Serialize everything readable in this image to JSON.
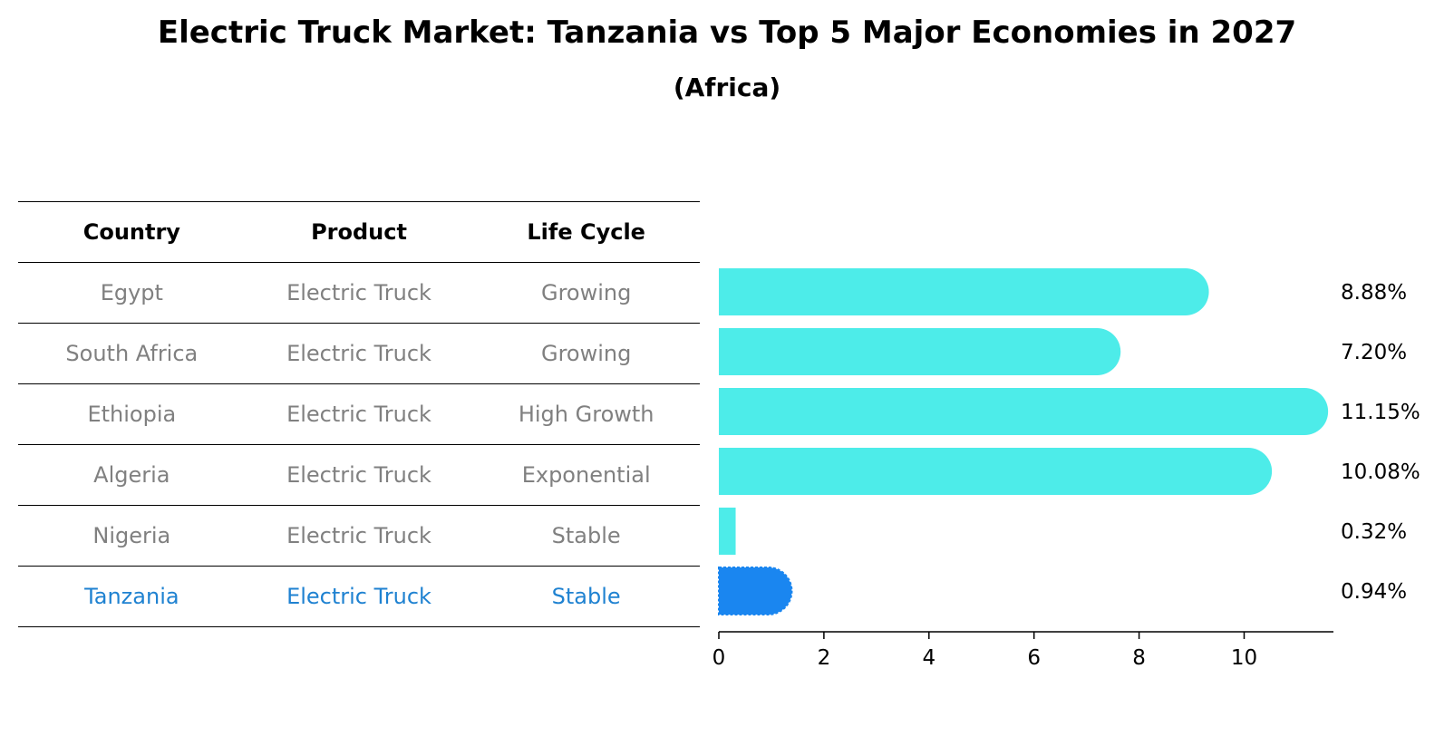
{
  "title": "Electric Truck Market: Tanzania vs Top 5 Major Economies in 2027",
  "subtitle": "(Africa)",
  "table": {
    "headers": [
      "Country",
      "Product",
      "Life Cycle"
    ],
    "rows": [
      {
        "country": "Egypt",
        "product": "Electric Truck",
        "life_cycle": "Growing"
      },
      {
        "country": "South Africa",
        "product": "Electric Truck",
        "life_cycle": "Growing"
      },
      {
        "country": "Ethiopia",
        "product": "Electric Truck",
        "life_cycle": "High Growth"
      },
      {
        "country": "Algeria",
        "product": "Electric Truck",
        "life_cycle": "Exponential"
      },
      {
        "country": "Nigeria",
        "product": "Electric Truck",
        "life_cycle": "Stable"
      },
      {
        "country": "Tanzania",
        "product": "Electric Truck",
        "life_cycle": "Stable"
      }
    ]
  },
  "colors": {
    "bar": "#4dece9",
    "highlight_bar": "#1a86f0",
    "highlight_text": "#1f82d1",
    "muted_text": "#808080"
  },
  "chart_data": {
    "type": "bar",
    "orientation": "horizontal",
    "categories": [
      "Egypt",
      "South Africa",
      "Ethiopia",
      "Algeria",
      "Nigeria",
      "Tanzania"
    ],
    "values": [
      8.88,
      7.2,
      11.15,
      10.08,
      0.32,
      0.94
    ],
    "value_labels": [
      "8.88%",
      "7.20%",
      "11.15%",
      "10.08%",
      "0.32%",
      "0.94%"
    ],
    "highlight": "Tanzania",
    "xlim": [
      0,
      11.7
    ],
    "xticks": [
      0,
      2,
      4,
      6,
      8,
      10
    ],
    "xlabel": "",
    "ylabel": "",
    "grid": false
  }
}
